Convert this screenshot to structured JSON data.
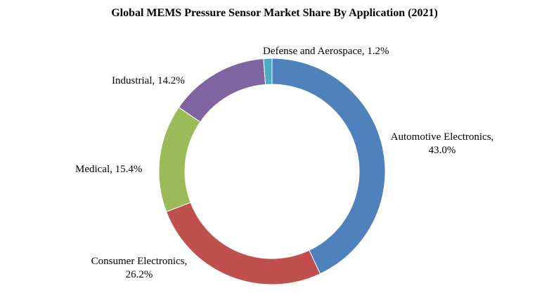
{
  "chart_data": {
    "type": "pie",
    "variant": "donut",
    "title": "Global MEMS Pressure Sensor Market Share By Application (2021)",
    "start_angle_deg": 0,
    "direction": "clockwise",
    "legend": "none",
    "slices": [
      {
        "name": "Automotive Electronics",
        "value": 43.0,
        "label_lines": [
          "Automotive Electronics,",
          "43.0%"
        ],
        "color": "#4f81bd"
      },
      {
        "name": "Consumer Electronics",
        "value": 26.2,
        "label_lines": [
          "Consumer Electronics,",
          "26.2%"
        ],
        "color": "#c0504d"
      },
      {
        "name": "Medical",
        "value": 15.4,
        "label_lines": [
          "Medical, 15.4%"
        ],
        "color": "#9bbb59"
      },
      {
        "name": "Industrial",
        "value": 14.2,
        "label_lines": [
          "Industrial,  14.2%"
        ],
        "color": "#8064a2"
      },
      {
        "name": "Defense and Aerospace",
        "value": 1.2,
        "label_lines": [
          "Defense and Aerospace, 1.2%"
        ],
        "color": "#4bacc6"
      }
    ]
  }
}
